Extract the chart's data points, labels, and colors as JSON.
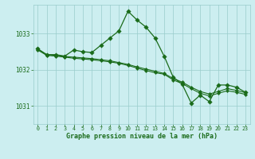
{
  "background_color": "#cceef0",
  "grid_color": "#99cccc",
  "line_color": "#1a6b1a",
  "marker_color": "#1a6b1a",
  "title": "Graphe pression niveau de la mer (hPa)",
  "xlim": [
    -0.5,
    23.5
  ],
  "ylim": [
    1030.5,
    1033.8
  ],
  "yticks": [
    1031,
    1032,
    1033
  ],
  "xticks": [
    0,
    1,
    2,
    3,
    4,
    5,
    6,
    7,
    8,
    9,
    10,
    11,
    12,
    13,
    14,
    15,
    16,
    17,
    18,
    19,
    20,
    21,
    22,
    23
  ],
  "series": [
    {
      "x": [
        0,
        1,
        2,
        3,
        4,
        5,
        6,
        7,
        8,
        9,
        10,
        11,
        12,
        13,
        14,
        15,
        16,
        17,
        18,
        19,
        20,
        21,
        22,
        23
      ],
      "y": [
        1032.55,
        1032.4,
        1032.38,
        1032.35,
        1032.32,
        1032.3,
        1032.28,
        1032.25,
        1032.22,
        1032.18,
        1032.12,
        1032.05,
        1031.98,
        1031.92,
        1031.88,
        1031.72,
        1031.62,
        1031.48,
        1031.35,
        1031.28,
        1031.35,
        1031.42,
        1031.38,
        1031.32
      ]
    },
    {
      "x": [
        0,
        1,
        2,
        3,
        4,
        5,
        6,
        7,
        8,
        9,
        10,
        11,
        12,
        13,
        14,
        15,
        16,
        17,
        18,
        19,
        20,
        21,
        22,
        23
      ],
      "y": [
        1032.58,
        1032.42,
        1032.4,
        1032.37,
        1032.35,
        1032.33,
        1032.31,
        1032.28,
        1032.25,
        1032.2,
        1032.15,
        1032.08,
        1032.02,
        1031.96,
        1031.9,
        1031.76,
        1031.66,
        1031.52,
        1031.4,
        1031.33,
        1031.4,
        1031.48,
        1031.43,
        1031.37
      ]
    },
    {
      "x": [
        0,
        1,
        2,
        3,
        4,
        5,
        6,
        7,
        8,
        9,
        10,
        11,
        12,
        13,
        14,
        15,
        16,
        17,
        18,
        19,
        20,
        21,
        22,
        23
      ],
      "y": [
        1032.58,
        1032.42,
        1032.42,
        1032.38,
        1032.55,
        1032.5,
        1032.48,
        1032.68,
        1032.88,
        1033.08,
        1033.62,
        1033.38,
        1033.18,
        1032.88,
        1032.38,
        1031.8,
        1031.6,
        1031.08,
        1031.3,
        1031.12,
        1031.58,
        1031.58,
        1031.52,
        1031.38
      ]
    }
  ]
}
